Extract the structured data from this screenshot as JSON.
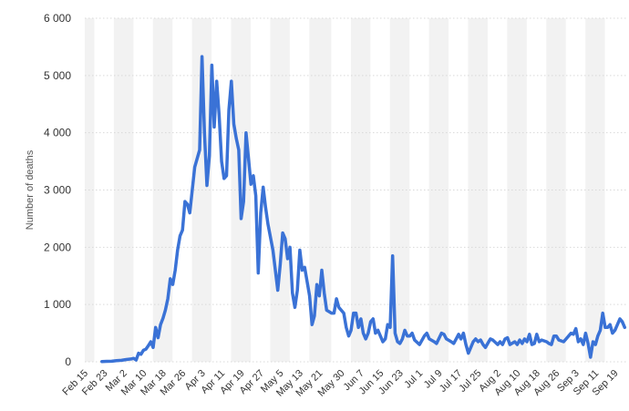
{
  "chart_data": {
    "type": "line",
    "ylabel": "Number of deaths",
    "ylim": [
      0,
      6000
    ],
    "yticks": [
      0,
      1000,
      2000,
      3000,
      4000,
      5000,
      6000
    ],
    "ytick_labels": [
      "0",
      "1 000",
      "2 000",
      "3 000",
      "4 000",
      "5 000",
      "6 000"
    ],
    "xlim": [
      "2020-02-15",
      "2020-09-24"
    ],
    "x_tick_labels": [
      "Feb 15",
      "Feb 23",
      "Mar 2",
      "Mar 10",
      "Mar 18",
      "Mar 26",
      "Apr 3",
      "Apr 11",
      "Apr 19",
      "Apr 27",
      "May 5",
      "May 13",
      "May 21",
      "May 30",
      "Jun 7",
      "Jun 15",
      "Jun 23",
      "Jul 1",
      "Jul 9",
      "Jul 17",
      "Jul 25",
      "Aug 2",
      "Aug 10",
      "Aug 18",
      "Aug 26",
      "Sep 3",
      "Sep 11",
      "Sep 19"
    ],
    "x_tick_dates": [
      "2020-02-15",
      "2020-02-23",
      "2020-03-02",
      "2020-03-10",
      "2020-03-18",
      "2020-03-26",
      "2020-04-03",
      "2020-04-11",
      "2020-04-19",
      "2020-04-27",
      "2020-05-05",
      "2020-05-13",
      "2020-05-21",
      "2020-05-30",
      "2020-06-07",
      "2020-06-15",
      "2020-06-23",
      "2020-07-01",
      "2020-07-09",
      "2020-07-17",
      "2020-07-25",
      "2020-08-02",
      "2020-08-10",
      "2020-08-18",
      "2020-08-26",
      "2020-09-03",
      "2020-09-11",
      "2020-09-19"
    ],
    "grid": true,
    "series": [
      {
        "color": "#3a72d6",
        "points": [
          [
            "2020-02-22",
            5
          ],
          [
            "2020-02-24",
            8
          ],
          [
            "2020-02-26",
            10
          ],
          [
            "2020-02-28",
            20
          ],
          [
            "2020-03-01",
            25
          ],
          [
            "2020-03-03",
            40
          ],
          [
            "2020-03-05",
            50
          ],
          [
            "2020-03-06",
            60
          ],
          [
            "2020-03-07",
            30
          ],
          [
            "2020-03-08",
            150
          ],
          [
            "2020-03-09",
            130
          ],
          [
            "2020-03-10",
            200
          ],
          [
            "2020-03-11",
            220
          ],
          [
            "2020-03-12",
            280
          ],
          [
            "2020-03-13",
            350
          ],
          [
            "2020-03-14",
            250
          ],
          [
            "2020-03-15",
            600
          ],
          [
            "2020-03-16",
            420
          ],
          [
            "2020-03-17",
            650
          ],
          [
            "2020-03-18",
            760
          ],
          [
            "2020-03-19",
            900
          ],
          [
            "2020-03-20",
            1100
          ],
          [
            "2020-03-21",
            1450
          ],
          [
            "2020-03-22",
            1350
          ],
          [
            "2020-03-23",
            1600
          ],
          [
            "2020-03-24",
            1950
          ],
          [
            "2020-03-25",
            2200
          ],
          [
            "2020-03-26",
            2300
          ],
          [
            "2020-03-27",
            2800
          ],
          [
            "2020-03-28",
            2750
          ],
          [
            "2020-03-29",
            2600
          ],
          [
            "2020-03-30",
            3000
          ],
          [
            "2020-03-31",
            3400
          ],
          [
            "2020-04-02",
            3700
          ],
          [
            "2020-04-03",
            5330
          ],
          [
            "2020-04-04",
            4000
          ],
          [
            "2020-04-05",
            3080
          ],
          [
            "2020-04-06",
            3600
          ],
          [
            "2020-04-07",
            5180
          ],
          [
            "2020-04-08",
            4100
          ],
          [
            "2020-04-09",
            4900
          ],
          [
            "2020-04-10",
            4300
          ],
          [
            "2020-04-11",
            3500
          ],
          [
            "2020-04-12",
            3200
          ],
          [
            "2020-04-13",
            3250
          ],
          [
            "2020-04-14",
            4400
          ],
          [
            "2020-04-15",
            4900
          ],
          [
            "2020-04-16",
            4150
          ],
          [
            "2020-04-17",
            3900
          ],
          [
            "2020-04-18",
            3700
          ],
          [
            "2020-04-19",
            2500
          ],
          [
            "2020-04-20",
            2800
          ],
          [
            "2020-04-21",
            4000
          ],
          [
            "2020-04-22",
            3550
          ],
          [
            "2020-04-23",
            3100
          ],
          [
            "2020-04-24",
            3250
          ],
          [
            "2020-04-25",
            2900
          ],
          [
            "2020-04-26",
            1550
          ],
          [
            "2020-04-27",
            2600
          ],
          [
            "2020-04-28",
            3050
          ],
          [
            "2020-04-29",
            2700
          ],
          [
            "2020-04-30",
            2400
          ],
          [
            "2020-05-02",
            1950
          ],
          [
            "2020-05-04",
            1250
          ],
          [
            "2020-05-05",
            1700
          ],
          [
            "2020-05-06",
            2250
          ],
          [
            "2020-05-07",
            2150
          ],
          [
            "2020-05-08",
            1800
          ],
          [
            "2020-05-09",
            2000
          ],
          [
            "2020-05-10",
            1200
          ],
          [
            "2020-05-11",
            950
          ],
          [
            "2020-05-12",
            1250
          ],
          [
            "2020-05-13",
            1950
          ],
          [
            "2020-05-14",
            1600
          ],
          [
            "2020-05-15",
            1650
          ],
          [
            "2020-05-17",
            1150
          ],
          [
            "2020-05-18",
            650
          ],
          [
            "2020-05-19",
            800
          ],
          [
            "2020-05-20",
            1350
          ],
          [
            "2020-05-21",
            1150
          ],
          [
            "2020-05-22",
            1600
          ],
          [
            "2020-05-23",
            1200
          ],
          [
            "2020-05-24",
            900
          ],
          [
            "2020-05-26",
            850
          ],
          [
            "2020-05-27",
            850
          ],
          [
            "2020-05-28",
            1100
          ],
          [
            "2020-05-29",
            950
          ],
          [
            "2020-05-31",
            850
          ],
          [
            "2020-06-01",
            600
          ],
          [
            "2020-06-02",
            450
          ],
          [
            "2020-06-03",
            550
          ],
          [
            "2020-06-04",
            850
          ],
          [
            "2020-06-05",
            850
          ],
          [
            "2020-06-06",
            600
          ],
          [
            "2020-06-07",
            750
          ],
          [
            "2020-06-08",
            500
          ],
          [
            "2020-06-09",
            400
          ],
          [
            "2020-06-10",
            500
          ],
          [
            "2020-06-11",
            700
          ],
          [
            "2020-06-12",
            750
          ],
          [
            "2020-06-13",
            500
          ],
          [
            "2020-06-14",
            550
          ],
          [
            "2020-06-15",
            450
          ],
          [
            "2020-06-16",
            350
          ],
          [
            "2020-06-17",
            400
          ],
          [
            "2020-06-18",
            650
          ],
          [
            "2020-06-19",
            600
          ],
          [
            "2020-06-20",
            1850
          ],
          [
            "2020-06-21",
            500
          ],
          [
            "2020-06-22",
            350
          ],
          [
            "2020-06-23",
            320
          ],
          [
            "2020-06-24",
            400
          ],
          [
            "2020-06-25",
            550
          ],
          [
            "2020-06-26",
            450
          ],
          [
            "2020-06-27",
            450
          ],
          [
            "2020-06-28",
            500
          ],
          [
            "2020-06-29",
            380
          ],
          [
            "2020-07-01",
            300
          ],
          [
            "2020-07-03",
            450
          ],
          [
            "2020-07-04",
            500
          ],
          [
            "2020-07-05",
            400
          ],
          [
            "2020-07-07",
            350
          ],
          [
            "2020-07-08",
            320
          ],
          [
            "2020-07-10",
            500
          ],
          [
            "2020-07-11",
            480
          ],
          [
            "2020-07-12",
            400
          ],
          [
            "2020-07-14",
            350
          ],
          [
            "2020-07-15",
            320
          ],
          [
            "2020-07-16",
            400
          ],
          [
            "2020-07-17",
            480
          ],
          [
            "2020-07-18",
            400
          ],
          [
            "2020-07-19",
            500
          ],
          [
            "2020-07-20",
            300
          ],
          [
            "2020-07-21",
            150
          ],
          [
            "2020-07-23",
            350
          ],
          [
            "2020-07-24",
            400
          ],
          [
            "2020-07-25",
            350
          ],
          [
            "2020-07-26",
            380
          ],
          [
            "2020-07-27",
            300
          ],
          [
            "2020-07-28",
            250
          ],
          [
            "2020-07-30",
            400
          ],
          [
            "2020-07-31",
            380
          ],
          [
            "2020-08-02",
            300
          ],
          [
            "2020-08-03",
            350
          ],
          [
            "2020-08-04",
            300
          ],
          [
            "2020-08-05",
            400
          ],
          [
            "2020-08-06",
            420
          ],
          [
            "2020-08-07",
            300
          ],
          [
            "2020-08-09",
            350
          ],
          [
            "2020-08-10",
            300
          ],
          [
            "2020-08-11",
            380
          ],
          [
            "2020-08-12",
            320
          ],
          [
            "2020-08-13",
            400
          ],
          [
            "2020-08-14",
            350
          ],
          [
            "2020-08-15",
            480
          ],
          [
            "2020-08-16",
            300
          ],
          [
            "2020-08-17",
            320
          ],
          [
            "2020-08-18",
            480
          ],
          [
            "2020-08-19",
            350
          ],
          [
            "2020-08-20",
            380
          ],
          [
            "2020-08-22",
            350
          ],
          [
            "2020-08-23",
            320
          ],
          [
            "2020-08-24",
            300
          ],
          [
            "2020-08-25",
            450
          ],
          [
            "2020-08-26",
            450
          ],
          [
            "2020-08-27",
            380
          ],
          [
            "2020-08-29",
            350
          ],
          [
            "2020-08-30",
            400
          ],
          [
            "2020-09-01",
            500
          ],
          [
            "2020-09-02",
            480
          ],
          [
            "2020-09-03",
            580
          ],
          [
            "2020-09-04",
            350
          ],
          [
            "2020-09-05",
            400
          ],
          [
            "2020-09-06",
            300
          ],
          [
            "2020-09-07",
            500
          ],
          [
            "2020-09-08",
            320
          ],
          [
            "2020-09-09",
            80
          ],
          [
            "2020-09-10",
            350
          ],
          [
            "2020-09-11",
            300
          ],
          [
            "2020-09-12",
            450
          ],
          [
            "2020-09-13",
            550
          ],
          [
            "2020-09-14",
            850
          ],
          [
            "2020-09-15",
            600
          ],
          [
            "2020-09-16",
            600
          ],
          [
            "2020-09-17",
            650
          ],
          [
            "2020-09-18",
            500
          ],
          [
            "2020-09-19",
            550
          ],
          [
            "2020-09-20",
            650
          ],
          [
            "2020-09-21",
            750
          ],
          [
            "2020-09-22",
            700
          ],
          [
            "2020-09-23",
            600
          ]
        ]
      }
    ]
  }
}
